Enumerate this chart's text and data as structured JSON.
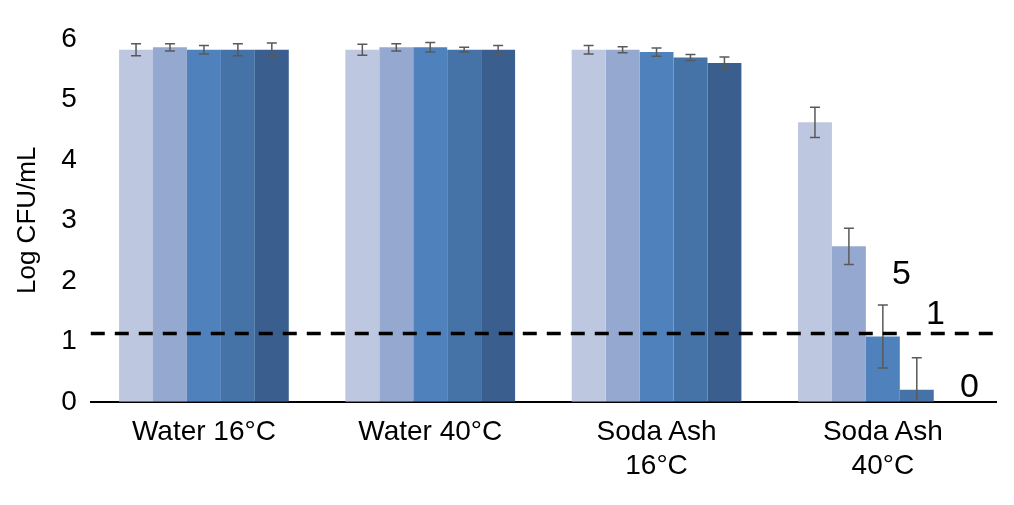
{
  "chart_data": {
    "type": "bar",
    "ylabel": "Log CFU/mL",
    "categories": [
      "Water 16°C",
      "Water 40°C",
      "Soda Ash 16°C",
      "Soda Ash 40°C"
    ],
    "series": [
      {
        "color": "#bdc7df",
        "values": [
          5.82,
          5.82,
          5.82,
          4.62
        ],
        "errors": [
          0.1,
          0.09,
          0.07,
          0.25
        ]
      },
      {
        "color": "#95a9d0",
        "values": [
          5.86,
          5.86,
          5.82,
          2.57
        ],
        "errors": [
          0.06,
          0.06,
          0.05,
          0.3
        ]
      },
      {
        "color": "#4f81bd",
        "values": [
          5.82,
          5.86,
          5.78,
          1.08
        ],
        "errors": [
          0.07,
          0.08,
          0.07,
          0.52
        ]
      },
      {
        "color": "#4573a7",
        "values": [
          5.82,
          5.82,
          5.69,
          0.2
        ],
        "errors": [
          0.1,
          0.04,
          0.05,
          [
            0,
            0.73
          ]
        ]
      },
      {
        "color": "#3a5f8f",
        "values": [
          5.82,
          5.82,
          5.6,
          null
        ],
        "errors": [
          0.11,
          0.07,
          0.1,
          null
        ]
      }
    ],
    "ylim": [
      0,
      6
    ],
    "yticks": [
      0,
      1,
      2,
      3,
      4,
      5,
      6
    ],
    "grid": false,
    "legend": false,
    "ref_lines": [
      {
        "axis": "y",
        "value": 1.13,
        "color": "#000000",
        "line_style": "dashed"
      }
    ],
    "annotations": [
      "5",
      "1",
      "0"
    ]
  }
}
